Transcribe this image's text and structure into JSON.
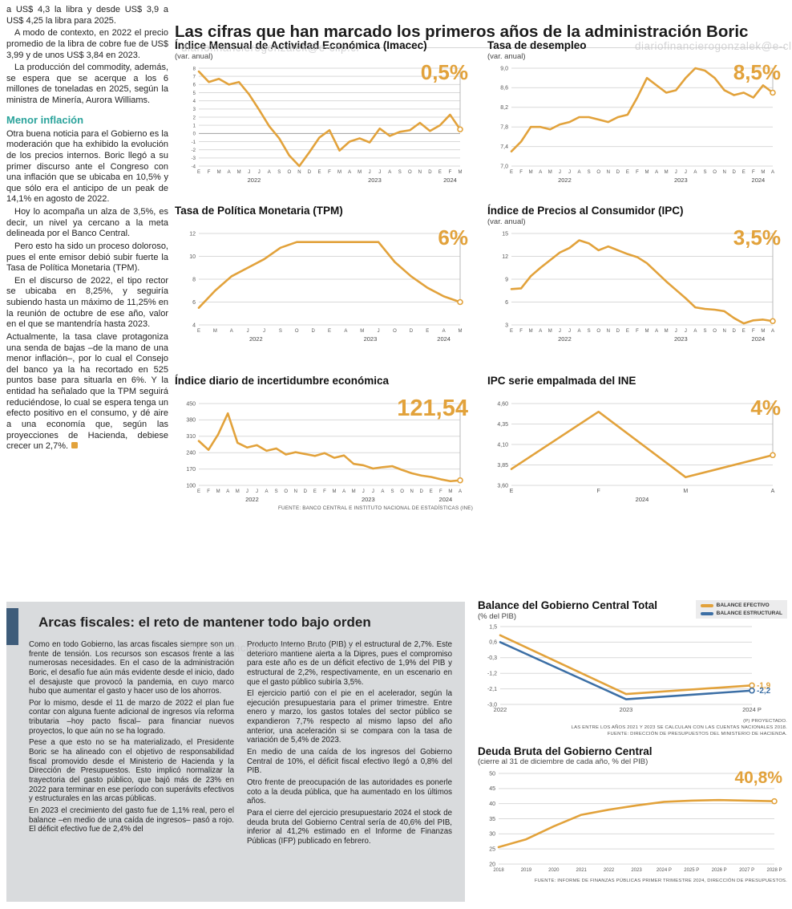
{
  "watermark": {
    "text": "diariofinancierogonzalek@e-clip.cl"
  },
  "main_title": "Las cifras que han marcado los primeros años de la administración Boric",
  "left_column": {
    "paragraphs": [
      "a US$ 4,3 la libra y desde US$ 3,9 a US$ 4,25 la libra para 2025.",
      "A modo de contexto, en 2022 el precio promedio de la libra de cobre fue de US$ 3,99 y de unos US$ 3,84 en 2023.",
      "La producción del commodity, además, se espera que se acerque a los 6 millones de toneladas en 2025, según la ministra de Minería, Aurora Williams."
    ],
    "subhead": "Menor inflación",
    "paragraphs2": [
      "Otra buena noticia para el Gobierno es la moderación que ha exhibido la evolución de los precios internos. Boric llegó a su primer discurso ante el Congreso con una inflación que se ubicaba en 10,5% y que sólo era el anticipo de un peak de 14,1% en agosto de 2022.",
      "Hoy lo acompaña un alza de 3,5%, es decir, un nivel ya cercano a la meta delineada por el Banco Central.",
      "Pero esto ha sido un proceso doloroso, pues el ente emisor debió subir fuerte la Tasa de Política Monetaria (TPM).",
      "En el discurso de 2022, el tipo rector se ubicaba en 8,25%, y seguiría subiendo hasta un máximo de 11,25% en la reunión de octubre de ese año, valor en el que se mantendría hasta 2023.",
      "Actualmente, la tasa clave protagoniza una senda de bajas –de la mano de una menor inflación–, por lo cual el Consejo del banco ya la ha recortado en 525 puntos base para situarla en 6%. Y la entidad ha señalado que la TPM seguirá reduciéndose, lo cual se espera tenga un efecto positivo en el consumo, y dé aire a una economía que, según las proyecciones de Hacienda, debiese crecer un 2,7%."
    ]
  },
  "sources": {
    "top_charts": "FUENTE: BANCO CENTRAL E INSTITUTO NACIONAL DE ESTADÍSTICAS (INE)"
  },
  "fiscal_box": {
    "title": "Arcas fiscales: el reto de mantener todo bajo orden",
    "paragraphs": [
      "Como en todo Gobierno, las arcas fiscales siempre son un frente de tensión. Los recursos son escasos frente a las numerosas necesidades. En el caso de la administración Boric, el desafío fue aún más evidente desde el inicio, dado el desajuste que provocó la pandemia, en cuyo marco hubo que aumentar el gasto y hacer uso de los ahorros.",
      "Por lo mismo, desde el 11 de marzo de 2022 el plan fue contar con alguna fuente adicional de ingresos vía reforma tributaria –hoy pacto fiscal– para financiar nuevos proyectos, lo que aún no se ha logrado.",
      "Pese a que esto no se ha materializado, el Presidente Boric se ha alineado con el objetivo de responsabilidad fiscal promovido desde el Ministerio de Hacienda y la Dirección de Presupuestos. Esto implicó normalizar la trayectoria del gasto público, que bajó más de 23% en 2022 para terminar en ese período con superávits efectivos y estructurales en las arcas públicas.",
      "En 2023 el crecimiento del gasto fue de 1,1% real, pero el balance –en medio de una caída de ingresos– pasó a rojo. El déficit efectivo fue de 2,4% del",
      "Producto Interno Bruto (PIB) y el estructural de 2,7%. Este deterioro mantiene alerta a la Dipres, pues el compromiso para este año es de un déficit efectivo de 1,9% del PIB y estructural de 2,2%, respectivamente, en un escenario en que el gasto público subiría 3,5%.",
      "El ejercicio partió con el pie en el acelerador, según la ejecución presupuestaria para el primer trimestre. Entre enero y marzo, los gastos totales del sector público se expandieron 7,7% respecto al mismo lapso del año anterior, una aceleración si se compara con la tasa de variación de 5,4% de 2023.",
      "En medio de una caída de los ingresos del Gobierno Central de 10%, el déficit fiscal efectivo llegó a 0,8% del PIB.",
      "Otro frente de preocupación de las autoridades es ponerle coto a la deuda pública, que ha aumentado en los últimos años.",
      "Para el cierre del ejercicio presupuestario 2024 el stock de deuda bruta del Gobierno Central sería de 40,6% del PIB, inferior al 41,2% estimado en el Informe de Finanzas Públicas (IFP) publicado en febrero."
    ]
  },
  "colors": {
    "accent_orange": "#E2A23B",
    "accent_blue": "#3C6FA5",
    "teal": "#2AA39B",
    "panel_gray": "#D9DBDD",
    "bar_blue": "#3E5C7A"
  },
  "chart_data": [
    {
      "type": "line",
      "title": "Índice Mensual de Actividad Económica (Imacec)",
      "subtitle": "(var. anual)",
      "big_label": "0,5%",
      "ylim": [
        -4,
        8
      ],
      "y_font": 6,
      "y_ticks": {
        "values": [
          8,
          7,
          6,
          5,
          4,
          3,
          2,
          1,
          0,
          -1,
          -2,
          -3,
          -4
        ],
        "labels": [
          "8",
          "7",
          "6",
          "5",
          "4",
          "3",
          "2",
          "1",
          "0",
          "-1",
          "-2",
          "-3",
          "-4"
        ]
      },
      "x_labels": [
        "E",
        "F",
        "M",
        "A",
        "M",
        "J",
        "J",
        "A",
        "S",
        "O",
        "N",
        "D",
        "E",
        "F",
        "M",
        "A",
        "M",
        "J",
        "J",
        "A",
        "S",
        "O",
        "N",
        "D",
        "E",
        "F",
        "M"
      ],
      "year_groups": [
        {
          "label": "2022",
          "from": 0,
          "to": 11
        },
        {
          "label": "2023",
          "from": 12,
          "to": 23
        },
        {
          "label": "2024",
          "from": 24,
          "to": 26
        }
      ],
      "guide": true,
      "series": [
        {
          "name": "Imacec",
          "color": "#E2A23B",
          "values": [
            7.6,
            6.3,
            6.7,
            6.0,
            6.3,
            4.8,
            2.9,
            0.9,
            -0.6,
            -2.7,
            -4.0,
            -2.3,
            -0.5,
            0.4,
            -2.1,
            -1.0,
            -0.6,
            -1.1,
            0.6,
            -0.3,
            0.2,
            0.4,
            1.3,
            0.3,
            1.0,
            2.3,
            0.5
          ]
        }
      ]
    },
    {
      "type": "line",
      "title": "Tasa de desempleo",
      "subtitle": "(var. anual)",
      "big_label": "8,5%",
      "ylim": [
        7.0,
        9.0
      ],
      "y_ticks": {
        "values": [
          9.0,
          8.6,
          8.2,
          7.8,
          7.4,
          7.0
        ],
        "labels": [
          "9,0",
          "8,6",
          "8,2",
          "7,8",
          "7,4",
          "7,0"
        ]
      },
      "x_labels": [
        "E",
        "F",
        "M",
        "A",
        "M",
        "J",
        "J",
        "A",
        "S",
        "O",
        "N",
        "D",
        "E",
        "F",
        "M",
        "A",
        "M",
        "J",
        "J",
        "A",
        "S",
        "O",
        "N",
        "D",
        "E",
        "F",
        "M",
        "A"
      ],
      "year_groups": [
        {
          "label": "2022",
          "from": 0,
          "to": 11
        },
        {
          "label": "2023",
          "from": 12,
          "to": 23
        },
        {
          "label": "2024",
          "from": 24,
          "to": 27
        }
      ],
      "guide": true,
      "series": [
        {
          "name": "Tasa de desempleo",
          "color": "#E2A23B",
          "values": [
            7.3,
            7.5,
            7.8,
            7.8,
            7.75,
            7.85,
            7.9,
            8.0,
            8.0,
            7.95,
            7.9,
            8.0,
            8.05,
            8.4,
            8.8,
            8.65,
            8.5,
            8.55,
            8.8,
            9.0,
            8.95,
            8.8,
            8.55,
            8.45,
            8.5,
            8.4,
            8.65,
            8.5
          ]
        }
      ]
    },
    {
      "type": "line",
      "title": "Tasa de Política Monetaria (TPM)",
      "subtitle": "",
      "big_label": "6%",
      "ylim": [
        4,
        12
      ],
      "y_ticks": {
        "values": [
          12,
          10,
          8,
          6,
          4
        ],
        "labels": [
          "12",
          "10",
          "8",
          "6",
          "4"
        ]
      },
      "x_labels": [
        "E",
        "M",
        "A",
        "J",
        "J",
        "S",
        "O",
        "D",
        "E",
        "A",
        "M",
        "J",
        "O",
        "D",
        "E",
        "A",
        "M"
      ],
      "year_groups": [
        {
          "label": "2022",
          "from": 0,
          "to": 7
        },
        {
          "label": "2023",
          "from": 8,
          "to": 13
        },
        {
          "label": "2024",
          "from": 14,
          "to": 16
        }
      ],
      "guide": true,
      "series": [
        {
          "name": "TPM",
          "color": "#E2A23B",
          "values": [
            5.5,
            7.0,
            8.25,
            9.0,
            9.75,
            10.75,
            11.25,
            11.25,
            11.25,
            11.25,
            11.25,
            11.25,
            9.5,
            8.25,
            7.25,
            6.5,
            6.0
          ]
        }
      ]
    },
    {
      "type": "line",
      "title": "Índice de Precios al Consumidor (IPC)",
      "subtitle": "(var. anual)",
      "big_label": "3,5%",
      "ylim": [
        3,
        15
      ],
      "y_ticks": {
        "values": [
          15,
          12,
          9,
          6,
          3
        ],
        "labels": [
          "15",
          "12",
          "9",
          "6",
          "3"
        ]
      },
      "x_labels": [
        "E",
        "F",
        "M",
        "A",
        "M",
        "J",
        "J",
        "A",
        "S",
        "O",
        "N",
        "D",
        "E",
        "F",
        "M",
        "A",
        "M",
        "J",
        "J",
        "A",
        "S",
        "O",
        "N",
        "D",
        "E",
        "F",
        "M",
        "A"
      ],
      "year_groups": [
        {
          "label": "2022",
          "from": 0,
          "to": 11
        },
        {
          "label": "2023",
          "from": 12,
          "to": 23
        },
        {
          "label": "2024",
          "from": 24,
          "to": 27
        }
      ],
      "guide": true,
      "series": [
        {
          "name": "IPC",
          "color": "#E2A23B",
          "values": [
            7.7,
            7.8,
            9.4,
            10.5,
            11.5,
            12.5,
            13.1,
            14.1,
            13.7,
            12.8,
            13.3,
            12.8,
            12.3,
            11.9,
            11.1,
            9.9,
            8.7,
            7.6,
            6.5,
            5.3,
            5.1,
            5.0,
            4.8,
            3.9,
            3.2,
            3.6,
            3.7,
            3.5
          ]
        }
      ]
    },
    {
      "type": "line",
      "title": "Índice diario de incertidumbre económica",
      "subtitle": "",
      "big_label": "121,54",
      "ylim": [
        100,
        450
      ],
      "y_ticks": {
        "values": [
          450,
          380,
          310,
          240,
          170,
          100
        ],
        "labels": [
          "450",
          "380",
          "310",
          "240",
          "170",
          "100"
        ]
      },
      "x_labels": [
        "E",
        "F",
        "M",
        "A",
        "M",
        "J",
        "J",
        "A",
        "S",
        "O",
        "N",
        "D",
        "E",
        "F",
        "M",
        "A",
        "M",
        "J",
        "J",
        "A",
        "S",
        "O",
        "N",
        "D",
        "E",
        "F",
        "M",
        "A"
      ],
      "year_groups": [
        {
          "label": "2022",
          "from": 0,
          "to": 11
        },
        {
          "label": "2023",
          "from": 12,
          "to": 23
        },
        {
          "label": "2024",
          "from": 24,
          "to": 27
        }
      ],
      "guide": true,
      "source": "FUENTE: BANCO CENTRAL E INSTITUTO NACIONAL DE ESTADÍSTICAS (INE)",
      "series": [
        {
          "name": "Incertidumbre económica",
          "color": "#E2A23B",
          "values": [
            290,
            252,
            318,
            408,
            282,
            262,
            272,
            248,
            258,
            232,
            242,
            234,
            226,
            238,
            218,
            228,
            192,
            186,
            172,
            178,
            182,
            166,
            152,
            142,
            136,
            126,
            118,
            121.54
          ]
        }
      ]
    },
    {
      "type": "line",
      "title": "IPC serie empalmada del INE",
      "subtitle": "",
      "big_label": "4%",
      "ylim": [
        3.6,
        4.6
      ],
      "y_ticks": {
        "values": [
          4.6,
          4.35,
          4.1,
          3.85,
          3.6
        ],
        "labels": [
          "4,60",
          "4,35",
          "4,10",
          "3,85",
          "3,60"
        ]
      },
      "x_labels": [
        "E",
        "F",
        "M",
        "A"
      ],
      "x_font": 7,
      "year_groups": [
        {
          "label": "2024",
          "from": 0,
          "to": 3
        }
      ],
      "guide": true,
      "series": [
        {
          "name": "IPC serie empalmada",
          "color": "#E2A23B",
          "values": [
            3.8,
            4.5,
            3.7,
            3.97
          ]
        }
      ]
    },
    {
      "type": "line",
      "title": "Balance del Gobierno Central Total",
      "subtitle": "(% del PIB)",
      "big_label": null,
      "ylim": [
        -3.0,
        1.5
      ],
      "y_ticks": {
        "values": [
          1.5,
          0.6,
          -0.3,
          -1.2,
          -2.1,
          -3.0
        ],
        "labels": [
          "1,5",
          "0,6",
          "-0,3",
          "-1,2",
          "-2,1",
          "-3,0"
        ]
      },
      "x_labels": [
        "2022",
        "2023",
        "2024 P"
      ],
      "x_font": 7.5,
      "margins": {
        "l": 28,
        "r": 44
      },
      "guide": false,
      "footnotes": [
        "(P) PROYECTADO.",
        "LAS ENTRE LOS AÑOS 2021 Y 2023 SE CALCULAN CON LAS CUENTAS NACIONALES 2018.",
        "FUENTE: DIRECCIÓN DE PRESUPUESTOS DEL MINISTERIO DE HACIENDA."
      ],
      "series": [
        {
          "name": "BALANCE EFECTIVO",
          "color": "#E2A23B",
          "values": [
            1.0,
            -2.4,
            -1.9
          ],
          "end_label": "-1,9"
        },
        {
          "name": "BALANCE ESTRUCTURAL",
          "color": "#3C6FA5",
          "values": [
            0.6,
            -2.7,
            -2.2
          ],
          "end_label": "-2,2"
        }
      ]
    },
    {
      "type": "line",
      "title": "Deuda Bruta del Gobierno Central",
      "subtitle": "(cierre al 31 de diciembre de cada año, % del PIB)",
      "big_label": "40,8%",
      "ylim": [
        20,
        50
      ],
      "y_ticks": {
        "values": [
          50,
          45,
          40,
          35,
          30,
          25,
          20
        ],
        "labels": [
          "50",
          "45",
          "40",
          "35",
          "30",
          "25",
          "20"
        ]
      },
      "x_labels": [
        "2018",
        "2019",
        "2020",
        "2021",
        "2022",
        "2023",
        "2024 P",
        "2025 P",
        "2026 P",
        "2027 P",
        "2028 P"
      ],
      "x_font": 6,
      "margins": {
        "l": 26,
        "r": 16
      },
      "guide": false,
      "source": "FUENTE: INFORME DE FINANZAS PÚBLICAS PRIMER TRIMESTRE 2024, DIRECCIÓN DE PRESUPUESTOS.",
      "series": [
        {
          "name": "Deuda bruta",
          "color": "#E2A23B",
          "values": [
            25.6,
            28.2,
            32.5,
            36.3,
            38.0,
            39.4,
            40.6,
            41.0,
            41.2,
            41.0,
            40.8
          ]
        }
      ]
    }
  ]
}
